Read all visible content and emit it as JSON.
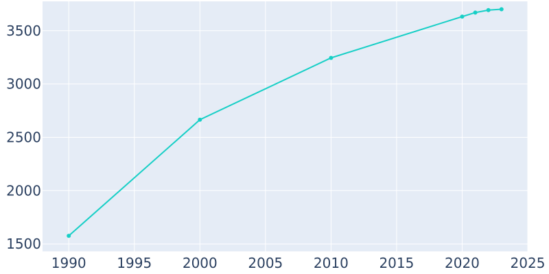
{
  "chart_data": {
    "type": "line",
    "title": "",
    "xlabel": "",
    "ylabel": "",
    "xlim": [
      1988,
      2025
    ],
    "ylim": [
      1430,
      3775
    ],
    "grid": true,
    "x_ticks": [
      1990,
      1995,
      2000,
      2005,
      2010,
      2015,
      2020,
      2025
    ],
    "y_ticks": [
      1500,
      2000,
      2500,
      3000,
      3500
    ],
    "x_tick_labels": [
      "1990",
      "1995",
      "2000",
      "2005",
      "2010",
      "2015",
      "2020",
      "2025"
    ],
    "y_tick_labels": [
      "1500",
      "2000",
      "2500",
      "3000",
      "3500"
    ],
    "series": [
      {
        "x": [
          1990,
          2000,
          2010,
          2020,
          2021,
          2022,
          2023
        ],
        "y": [
          1576,
          2665,
          3245,
          3632,
          3670,
          3693,
          3701
        ]
      }
    ]
  },
  "colors": {
    "plot_background": "#e5ecf6",
    "grid": "#ffffff",
    "line": "#17cfc6",
    "tick_text": "#2a3f5f"
  }
}
